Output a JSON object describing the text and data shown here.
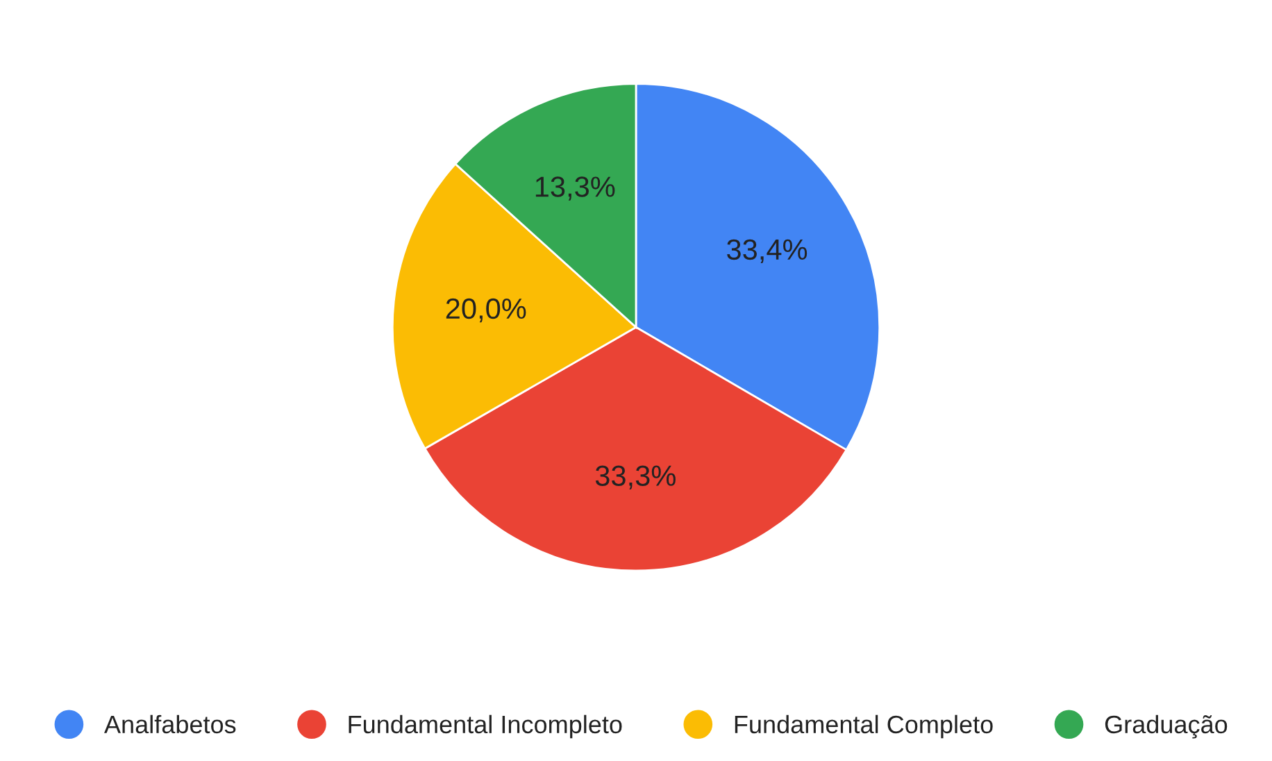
{
  "chart_data": {
    "type": "pie",
    "categories": [
      "Analfabetos",
      "Fundamental Incompleto",
      "Fundamental Completo",
      "Graduação"
    ],
    "values": [
      33.4,
      33.3,
      20.0,
      13.3
    ],
    "value_labels": [
      "33,4%",
      "33,3%",
      "20,0%",
      "13,3%"
    ],
    "colors": [
      "#4285f4",
      "#ea4335",
      "#fbbc04",
      "#34a853"
    ],
    "legend": "bottom"
  }
}
